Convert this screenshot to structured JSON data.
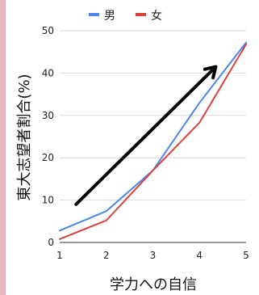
{
  "chart_data": {
    "type": "line",
    "title": "",
    "xlabel": "学力への自信",
    "ylabel": "東大志望者割合(%)",
    "x": [
      1,
      2,
      3,
      4,
      5
    ],
    "xlim": [
      1,
      5
    ],
    "ylim": [
      0,
      50
    ],
    "yticks": [
      0,
      10,
      20,
      30,
      40,
      50
    ],
    "grid": true,
    "legend_position": "top",
    "series": [
      {
        "name": "男",
        "color": "#4a86e8",
        "values": [
          2.8,
          7.4,
          17.0,
          33.0,
          47.2
        ]
      },
      {
        "name": "女",
        "color": "#d9413a",
        "values": [
          0.8,
          5.2,
          17.0,
          28.3,
          46.8
        ]
      }
    ],
    "annotation": {
      "type": "arrow",
      "color": "#000000",
      "from": [
        1.35,
        9.0
      ],
      "to": [
        4.35,
        41.5
      ]
    }
  }
}
